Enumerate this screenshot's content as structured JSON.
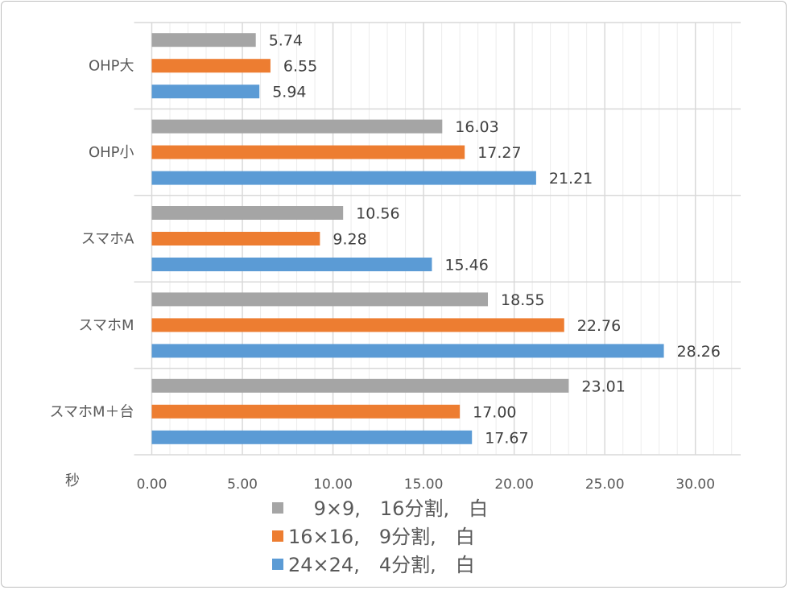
{
  "chart_data": {
    "type": "bar",
    "orientation": "horizontal",
    "categories": [
      "OHP大",
      "OHP小",
      "スマホA",
      "スマホM",
      "スマホM＋台"
    ],
    "series": [
      {
        "name": "9×9,　16分割,　白",
        "color": "#a5a5a5",
        "values": [
          5.74,
          16.03,
          10.56,
          18.55,
          23.01
        ],
        "labels": [
          "5.74",
          "16.03",
          "10.56",
          "18.55",
          "23.01"
        ]
      },
      {
        "name": "16×16,　9分割,　白",
        "color": "#ed7d31",
        "values": [
          6.55,
          17.27,
          9.28,
          22.76,
          17.0
        ],
        "labels": [
          "6.55",
          "17.27",
          "9.28",
          "22.76",
          "17.00"
        ]
      },
      {
        "name": "24×24,　4分割,　白",
        "color": "#5b9bd5",
        "values": [
          5.94,
          21.21,
          15.46,
          28.26,
          17.67
        ],
        "labels": [
          "5.94",
          "21.21",
          "15.46",
          "28.26",
          "17.67"
        ]
      }
    ],
    "xlabel": "秒",
    "xlim": [
      0,
      32.5
    ],
    "xticks": [
      "0.00",
      "5.00",
      "10.00",
      "15.00",
      "20.00",
      "25.00",
      "30.00"
    ],
    "grid": {
      "major": 5,
      "minor": 1
    },
    "legend": "bottom"
  }
}
